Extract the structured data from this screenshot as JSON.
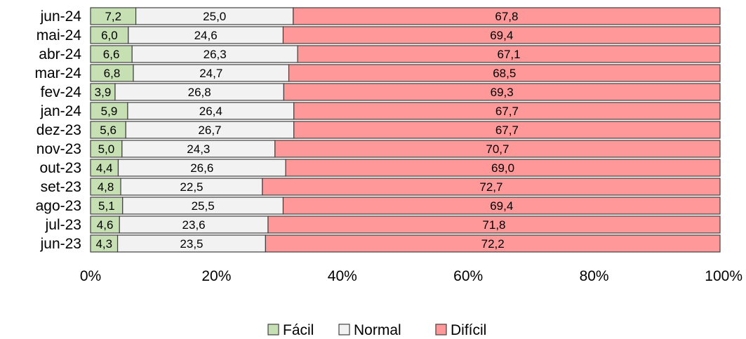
{
  "chart_data": {
    "type": "bar",
    "orientation": "horizontal",
    "stacked": "percent",
    "categories": [
      "jun-24",
      "mai-24",
      "abr-24",
      "mar-24",
      "fev-24",
      "jan-24",
      "dez-23",
      "nov-23",
      "out-23",
      "set-23",
      "ago-23",
      "jul-23",
      "jun-23"
    ],
    "series": [
      {
        "name": "Fácil",
        "color": "#c6e0b4",
        "values": [
          7.2,
          6.0,
          6.6,
          6.8,
          3.9,
          5.9,
          5.6,
          5.0,
          4.4,
          4.8,
          5.1,
          4.6,
          4.3
        ],
        "labels": [
          "7,2",
          "6,0",
          "6,6",
          "6,8",
          "3,9",
          "5,9",
          "5,6",
          "5,0",
          "4,4",
          "4,8",
          "5,1",
          "4,6",
          "4,3"
        ]
      },
      {
        "name": "Normal",
        "color": "#f2f2f2",
        "values": [
          25.0,
          24.6,
          26.3,
          24.7,
          26.8,
          26.4,
          26.7,
          24.3,
          26.6,
          22.5,
          25.5,
          23.6,
          23.5
        ],
        "labels": [
          "25,0",
          "24,6",
          "26,3",
          "24,7",
          "26,8",
          "26,4",
          "26,7",
          "24,3",
          "26,6",
          "22,5",
          "25,5",
          "23,6",
          "23,5"
        ]
      },
      {
        "name": "Difícil",
        "color": "#ff9999",
        "values": [
          67.8,
          69.4,
          67.1,
          68.5,
          69.3,
          67.7,
          67.7,
          70.7,
          69.0,
          72.7,
          69.4,
          71.8,
          72.2
        ],
        "labels": [
          "67,8",
          "69,4",
          "67,1",
          "68,5",
          "69,3",
          "67,7",
          "67,7",
          "70,7",
          "69,0",
          "72,7",
          "69,4",
          "71,8",
          "72,2"
        ]
      }
    ],
    "xticks": [
      "0%",
      "20%",
      "40%",
      "60%",
      "80%",
      "100%"
    ],
    "xlim": [
      0,
      100
    ],
    "grid": false,
    "legend": "bottom",
    "bar_border_color": "#404040"
  }
}
